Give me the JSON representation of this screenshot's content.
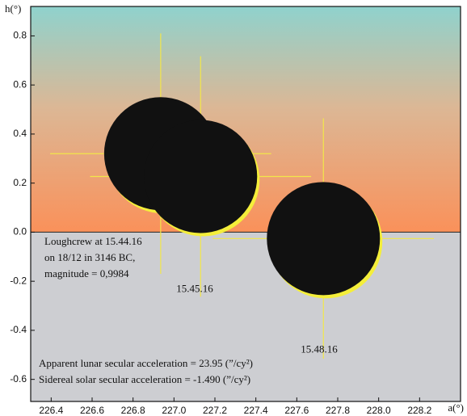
{
  "chart_data": {
    "type": "scatter",
    "x_label": "a(°)",
    "y_label": "h(°)",
    "xlim": [
      226.3,
      228.4
    ],
    "ylim": [
      -0.69,
      0.92
    ],
    "xticks": [
      226.4,
      226.6,
      226.8,
      {
        "value": 227,
        "label": "227.0"
      },
      227.2,
      227.4,
      227.6,
      227.8,
      {
        "value": 228,
        "label": "228.0"
      },
      228.2
    ],
    "yticks": [
      0.8,
      0.6,
      0.4,
      0.2,
      {
        "value": 0,
        "label": "0.0"
      },
      -0.2,
      -0.4,
      -0.6
    ],
    "x": [
      226.935,
      227.13,
      227.73
    ],
    "values": [
      0.32,
      0.227,
      -0.026
    ],
    "point_labels": [
      null,
      "15.45.16",
      "15.48.16"
    ],
    "color": "#111111",
    "sun_color": "#f4ee3a",
    "crosshair_color": "#f2e64a",
    "annotations": [
      "Loughcrew at 15.44.16",
      "on 18/12 in 3146 BC,",
      "magnitude = 0,9984"
    ],
    "notes": [
      "Apparent lunar secular acceleration = 23.95 (”/cy²)",
      "Sidereal solar secular acceleration   = -1.490 (”/cy²)"
    ]
  }
}
